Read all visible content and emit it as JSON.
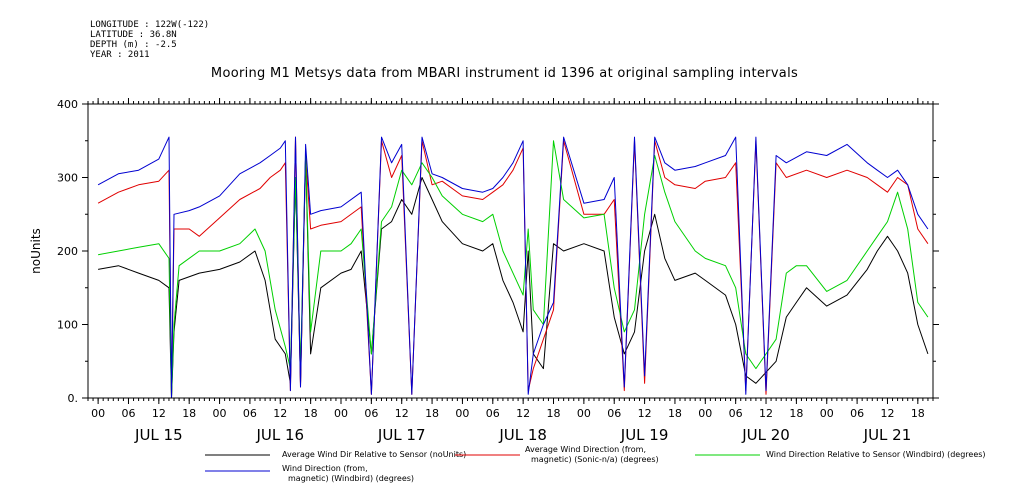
{
  "header": {
    "longitude": "LONGITUDE : 122W(-122)",
    "latitude": "LATITUDE : 36.8N",
    "depth": "DEPTH (m) : -2.5",
    "year": "YEAR : 2011"
  },
  "chart_data": {
    "type": "line",
    "title": "Mooring M1 Metsys data from MBARI instrument id 1396 at original sampling intervals",
    "ylabel": "noUnits",
    "xlabel": "",
    "ylim": [
      0,
      400
    ],
    "y_ticks": [
      "0.",
      "100",
      "200",
      "300",
      "400"
    ],
    "y_tick_values": [
      0,
      100,
      200,
      300,
      400
    ],
    "x_range_hours": [
      -2,
      165
    ],
    "x_hour_ticks": [
      "00",
      "06",
      "12",
      "18",
      "00",
      "06",
      "12",
      "18",
      "00",
      "06",
      "12",
      "18",
      "00",
      "06",
      "12",
      "18",
      "00",
      "06",
      "12",
      "18",
      "00",
      "06",
      "12",
      "18",
      "00",
      "06",
      "12",
      "18"
    ],
    "x_hour_tick_values": [
      0,
      6,
      12,
      18,
      24,
      30,
      36,
      42,
      48,
      54,
      60,
      66,
      72,
      78,
      84,
      90,
      96,
      102,
      108,
      114,
      120,
      126,
      132,
      138,
      144,
      150,
      156,
      162
    ],
    "day_labels": [
      "JUL 15",
      "JUL 16",
      "JUL 17",
      "JUL 18",
      "JUL 19",
      "JUL 20",
      "JUL 21"
    ],
    "day_label_centers_hours": [
      12,
      36,
      60,
      84,
      108,
      132,
      156
    ],
    "grid": false,
    "legend_placement": "bottom",
    "series": [
      {
        "name": "Average Wind Dir Relative to Sensor (noUnits)",
        "color": "#000000",
        "points": [
          [
            0,
            175
          ],
          [
            4,
            180
          ],
          [
            8,
            170
          ],
          [
            12,
            160
          ],
          [
            14,
            150
          ],
          [
            14.5,
            0
          ],
          [
            15,
            90
          ],
          [
            16,
            160
          ],
          [
            20,
            170
          ],
          [
            24,
            175
          ],
          [
            28,
            185
          ],
          [
            31,
            200
          ],
          [
            33,
            160
          ],
          [
            35,
            80
          ],
          [
            37,
            60
          ],
          [
            38,
            20
          ],
          [
            39,
            300
          ],
          [
            40,
            20
          ],
          [
            41,
            330
          ],
          [
            42,
            60
          ],
          [
            44,
            150
          ],
          [
            48,
            170
          ],
          [
            50,
            175
          ],
          [
            52,
            200
          ],
          [
            54,
            60
          ],
          [
            56,
            230
          ],
          [
            58,
            240
          ],
          [
            60,
            270
          ],
          [
            62,
            250
          ],
          [
            64,
            300
          ],
          [
            66,
            270
          ],
          [
            68,
            240
          ],
          [
            72,
            210
          ],
          [
            76,
            200
          ],
          [
            78,
            210
          ],
          [
            80,
            160
          ],
          [
            82,
            130
          ],
          [
            84,
            90
          ],
          [
            85,
            200
          ],
          [
            86,
            60
          ],
          [
            88,
            40
          ],
          [
            90,
            210
          ],
          [
            92,
            200
          ],
          [
            96,
            210
          ],
          [
            100,
            200
          ],
          [
            102,
            110
          ],
          [
            104,
            60
          ],
          [
            106,
            90
          ],
          [
            108,
            200
          ],
          [
            110,
            250
          ],
          [
            112,
            190
          ],
          [
            114,
            160
          ],
          [
            118,
            170
          ],
          [
            120,
            160
          ],
          [
            124,
            140
          ],
          [
            126,
            100
          ],
          [
            128,
            30
          ],
          [
            130,
            20
          ],
          [
            134,
            50
          ],
          [
            136,
            110
          ],
          [
            138,
            130
          ],
          [
            140,
            150
          ],
          [
            144,
            125
          ],
          [
            148,
            140
          ],
          [
            152,
            175
          ],
          [
            154,
            200
          ],
          [
            156,
            220
          ],
          [
            158,
            200
          ],
          [
            160,
            170
          ],
          [
            162,
            100
          ],
          [
            164,
            60
          ]
        ]
      },
      {
        "name": "Average Wind Direction (from, magnetic) (Sonic-n/a) (degrees)",
        "color": "#e00000",
        "points": [
          [
            0,
            265
          ],
          [
            4,
            280
          ],
          [
            8,
            290
          ],
          [
            12,
            295
          ],
          [
            14,
            310
          ],
          [
            14.5,
            0
          ],
          [
            15,
            230
          ],
          [
            18,
            230
          ],
          [
            20,
            220
          ],
          [
            24,
            245
          ],
          [
            28,
            270
          ],
          [
            32,
            285
          ],
          [
            34,
            300
          ],
          [
            36,
            310
          ],
          [
            37,
            320
          ],
          [
            38,
            10
          ],
          [
            39,
            355
          ],
          [
            40,
            15
          ],
          [
            41,
            330
          ],
          [
            42,
            230
          ],
          [
            44,
            235
          ],
          [
            48,
            240
          ],
          [
            52,
            260
          ],
          [
            54,
            5
          ],
          [
            56,
            350
          ],
          [
            58,
            300
          ],
          [
            60,
            330
          ],
          [
            62,
            5
          ],
          [
            64,
            350
          ],
          [
            66,
            290
          ],
          [
            68,
            295
          ],
          [
            72,
            275
          ],
          [
            76,
            270
          ],
          [
            78,
            280
          ],
          [
            80,
            290
          ],
          [
            82,
            310
          ],
          [
            84,
            340
          ],
          [
            85,
            10
          ],
          [
            86,
            40
          ],
          [
            88,
            80
          ],
          [
            90,
            120
          ],
          [
            92,
            350
          ],
          [
            96,
            250
          ],
          [
            100,
            250
          ],
          [
            102,
            270
          ],
          [
            104,
            10
          ],
          [
            106,
            350
          ],
          [
            108,
            20
          ],
          [
            110,
            350
          ],
          [
            112,
            300
          ],
          [
            114,
            290
          ],
          [
            118,
            285
          ],
          [
            120,
            295
          ],
          [
            124,
            300
          ],
          [
            126,
            320
          ],
          [
            128,
            10
          ],
          [
            130,
            350
          ],
          [
            132,
            5
          ],
          [
            134,
            320
          ],
          [
            136,
            300
          ],
          [
            140,
            310
          ],
          [
            144,
            300
          ],
          [
            148,
            310
          ],
          [
            152,
            300
          ],
          [
            154,
            290
          ],
          [
            156,
            280
          ],
          [
            158,
            300
          ],
          [
            160,
            290
          ],
          [
            162,
            230
          ],
          [
            164,
            210
          ]
        ]
      },
      {
        "name": "Wind Direction Relative to Sensor (Windbird) (degrees)",
        "color": "#00d000",
        "points": [
          [
            0,
            195
          ],
          [
            4,
            200
          ],
          [
            8,
            205
          ],
          [
            12,
            210
          ],
          [
            14,
            190
          ],
          [
            14.5,
            0
          ],
          [
            15,
            100
          ],
          [
            16,
            180
          ],
          [
            20,
            200
          ],
          [
            24,
            200
          ],
          [
            28,
            210
          ],
          [
            31,
            230
          ],
          [
            33,
            200
          ],
          [
            35,
            120
          ],
          [
            37,
            70
          ],
          [
            38,
            40
          ],
          [
            39,
            300
          ],
          [
            40,
            40
          ],
          [
            41,
            330
          ],
          [
            42,
            90
          ],
          [
            44,
            200
          ],
          [
            48,
            200
          ],
          [
            50,
            210
          ],
          [
            52,
            230
          ],
          [
            54,
            60
          ],
          [
            56,
            240
          ],
          [
            58,
            260
          ],
          [
            60,
            310
          ],
          [
            62,
            290
          ],
          [
            64,
            320
          ],
          [
            66,
            300
          ],
          [
            68,
            275
          ],
          [
            72,
            250
          ],
          [
            76,
            240
          ],
          [
            78,
            250
          ],
          [
            80,
            200
          ],
          [
            82,
            170
          ],
          [
            84,
            140
          ],
          [
            85,
            230
          ],
          [
            86,
            120
          ],
          [
            88,
            100
          ],
          [
            90,
            350
          ],
          [
            92,
            270
          ],
          [
            96,
            245
          ],
          [
            100,
            250
          ],
          [
            102,
            150
          ],
          [
            104,
            90
          ],
          [
            106,
            120
          ],
          [
            108,
            250
          ],
          [
            110,
            330
          ],
          [
            112,
            280
          ],
          [
            114,
            240
          ],
          [
            118,
            200
          ],
          [
            120,
            190
          ],
          [
            124,
            180
          ],
          [
            126,
            150
          ],
          [
            128,
            60
          ],
          [
            130,
            40
          ],
          [
            134,
            80
          ],
          [
            136,
            170
          ],
          [
            138,
            180
          ],
          [
            140,
            180
          ],
          [
            144,
            145
          ],
          [
            148,
            160
          ],
          [
            152,
            200
          ],
          [
            154,
            220
          ],
          [
            156,
            240
          ],
          [
            158,
            280
          ],
          [
            160,
            230
          ],
          [
            162,
            130
          ],
          [
            164,
            110
          ]
        ]
      },
      {
        "name": "Wind Direction (from, magnetic) (Windbird) (degrees)",
        "color": "#0000d0",
        "points": [
          [
            0,
            290
          ],
          [
            4,
            305
          ],
          [
            8,
            310
          ],
          [
            12,
            325
          ],
          [
            14,
            355
          ],
          [
            14.5,
            0
          ],
          [
            15,
            250
          ],
          [
            18,
            255
          ],
          [
            20,
            260
          ],
          [
            24,
            275
          ],
          [
            28,
            305
          ],
          [
            32,
            320
          ],
          [
            34,
            330
          ],
          [
            36,
            340
          ],
          [
            37,
            350
          ],
          [
            38,
            10
          ],
          [
            39,
            355
          ],
          [
            40,
            15
          ],
          [
            41,
            345
          ],
          [
            42,
            250
          ],
          [
            44,
            255
          ],
          [
            48,
            260
          ],
          [
            52,
            280
          ],
          [
            54,
            5
          ],
          [
            56,
            355
          ],
          [
            58,
            320
          ],
          [
            60,
            345
          ],
          [
            62,
            5
          ],
          [
            64,
            355
          ],
          [
            66,
            305
          ],
          [
            68,
            300
          ],
          [
            72,
            285
          ],
          [
            76,
            280
          ],
          [
            78,
            285
          ],
          [
            80,
            300
          ],
          [
            82,
            320
          ],
          [
            84,
            350
          ],
          [
            85,
            5
          ],
          [
            86,
            60
          ],
          [
            88,
            100
          ],
          [
            90,
            130
          ],
          [
            92,
            355
          ],
          [
            96,
            265
          ],
          [
            100,
            270
          ],
          [
            102,
            300
          ],
          [
            104,
            15
          ],
          [
            106,
            355
          ],
          [
            108,
            30
          ],
          [
            110,
            355
          ],
          [
            112,
            320
          ],
          [
            114,
            310
          ],
          [
            118,
            315
          ],
          [
            120,
            320
          ],
          [
            124,
            330
          ],
          [
            126,
            355
          ],
          [
            128,
            5
          ],
          [
            130,
            355
          ],
          [
            132,
            10
          ],
          [
            134,
            330
          ],
          [
            136,
            320
          ],
          [
            140,
            335
          ],
          [
            144,
            330
          ],
          [
            148,
            345
          ],
          [
            152,
            320
          ],
          [
            154,
            310
          ],
          [
            156,
            300
          ],
          [
            158,
            310
          ],
          [
            160,
            290
          ],
          [
            162,
            250
          ],
          [
            164,
            230
          ]
        ]
      }
    ]
  },
  "legend": {
    "items": [
      {
        "label_line1": "Average Wind Dir Relative to Sensor (noUnits)",
        "label_line2": "",
        "color": "#000000"
      },
      {
        "label_line1": "Average Wind Direction (from,",
        "label_line2": "magnetic) (Sonic-n/a) (degrees)",
        "color": "#e00000"
      },
      {
        "label_line1": "Wind Direction Relative to Sensor (Windbird) (degrees)",
        "label_line2": "",
        "color": "#00d000"
      },
      {
        "label_line1": "Wind Direction (from,",
        "label_line2": "magnetic) (Windbird) (degrees)",
        "color": "#0000d0"
      }
    ]
  }
}
